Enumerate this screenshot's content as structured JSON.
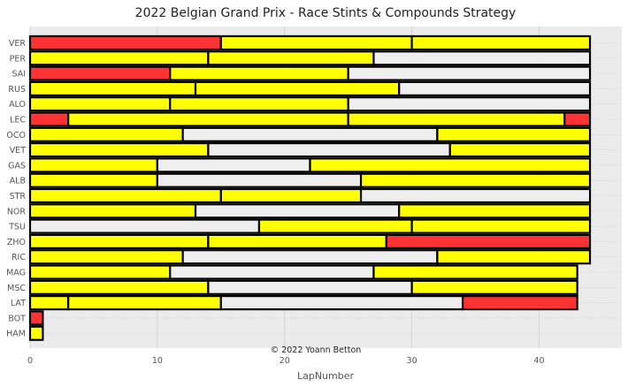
{
  "chart_data": {
    "type": "bar",
    "orientation": "horizontal-stacked",
    "title": "2022 Belgian Grand Prix - Race Stints & Compounds Strategy",
    "xlabel": "LapNumber",
    "ylabel": "",
    "xlim": [
      0,
      46.5
    ],
    "xticks": [
      0,
      10,
      20,
      30,
      40
    ],
    "grid": true,
    "annotation": "© 2022 Yoann Betton",
    "compound_colors": {
      "SOFT": "#ff3333",
      "MEDIUM": "#ffff00",
      "HARD": "#eeeeee"
    },
    "drivers": [
      {
        "driver": "VER",
        "stints": [
          {
            "compound": "SOFT",
            "laps": 15
          },
          {
            "compound": "MEDIUM",
            "laps": 15
          },
          {
            "compound": "MEDIUM",
            "laps": 14
          }
        ]
      },
      {
        "driver": "PER",
        "stints": [
          {
            "compound": "MEDIUM",
            "laps": 14
          },
          {
            "compound": "MEDIUM",
            "laps": 13
          },
          {
            "compound": "HARD",
            "laps": 17
          }
        ]
      },
      {
        "driver": "SAI",
        "stints": [
          {
            "compound": "SOFT",
            "laps": 11
          },
          {
            "compound": "MEDIUM",
            "laps": 14
          },
          {
            "compound": "HARD",
            "laps": 19
          }
        ]
      },
      {
        "driver": "RUS",
        "stints": [
          {
            "compound": "MEDIUM",
            "laps": 13
          },
          {
            "compound": "MEDIUM",
            "laps": 16
          },
          {
            "compound": "HARD",
            "laps": 15
          }
        ]
      },
      {
        "driver": "ALO",
        "stints": [
          {
            "compound": "MEDIUM",
            "laps": 11
          },
          {
            "compound": "MEDIUM",
            "laps": 14
          },
          {
            "compound": "HARD",
            "laps": 19
          }
        ]
      },
      {
        "driver": "LEC",
        "stints": [
          {
            "compound": "SOFT",
            "laps": 3
          },
          {
            "compound": "MEDIUM",
            "laps": 22
          },
          {
            "compound": "MEDIUM",
            "laps": 17
          },
          {
            "compound": "SOFT",
            "laps": 2
          }
        ]
      },
      {
        "driver": "OCO",
        "stints": [
          {
            "compound": "MEDIUM",
            "laps": 12
          },
          {
            "compound": "HARD",
            "laps": 20
          },
          {
            "compound": "MEDIUM",
            "laps": 12
          }
        ]
      },
      {
        "driver": "VET",
        "stints": [
          {
            "compound": "MEDIUM",
            "laps": 14
          },
          {
            "compound": "HARD",
            "laps": 19
          },
          {
            "compound": "MEDIUM",
            "laps": 11
          }
        ]
      },
      {
        "driver": "GAS",
        "stints": [
          {
            "compound": "MEDIUM",
            "laps": 10
          },
          {
            "compound": "HARD",
            "laps": 12
          },
          {
            "compound": "MEDIUM",
            "laps": 22
          }
        ]
      },
      {
        "driver": "ALB",
        "stints": [
          {
            "compound": "MEDIUM",
            "laps": 10
          },
          {
            "compound": "HARD",
            "laps": 16
          },
          {
            "compound": "MEDIUM",
            "laps": 18
          }
        ]
      },
      {
        "driver": "STR",
        "stints": [
          {
            "compound": "MEDIUM",
            "laps": 15
          },
          {
            "compound": "MEDIUM",
            "laps": 11
          },
          {
            "compound": "HARD",
            "laps": 18
          }
        ]
      },
      {
        "driver": "NOR",
        "stints": [
          {
            "compound": "MEDIUM",
            "laps": 13
          },
          {
            "compound": "HARD",
            "laps": 16
          },
          {
            "compound": "MEDIUM",
            "laps": 15
          }
        ]
      },
      {
        "driver": "TSU",
        "stints": [
          {
            "compound": "HARD",
            "laps": 18
          },
          {
            "compound": "MEDIUM",
            "laps": 12
          },
          {
            "compound": "MEDIUM",
            "laps": 14
          }
        ]
      },
      {
        "driver": "ZHO",
        "stints": [
          {
            "compound": "MEDIUM",
            "laps": 14
          },
          {
            "compound": "MEDIUM",
            "laps": 14
          },
          {
            "compound": "SOFT",
            "laps": 16
          }
        ]
      },
      {
        "driver": "RIC",
        "stints": [
          {
            "compound": "MEDIUM",
            "laps": 12
          },
          {
            "compound": "HARD",
            "laps": 20
          },
          {
            "compound": "MEDIUM",
            "laps": 12
          }
        ]
      },
      {
        "driver": "MAG",
        "stints": [
          {
            "compound": "MEDIUM",
            "laps": 11
          },
          {
            "compound": "HARD",
            "laps": 16
          },
          {
            "compound": "MEDIUM",
            "laps": 16
          }
        ]
      },
      {
        "driver": "MSC",
        "stints": [
          {
            "compound": "MEDIUM",
            "laps": 14
          },
          {
            "compound": "HARD",
            "laps": 16
          },
          {
            "compound": "MEDIUM",
            "laps": 13
          }
        ]
      },
      {
        "driver": "LAT",
        "stints": [
          {
            "compound": "MEDIUM",
            "laps": 3
          },
          {
            "compound": "MEDIUM",
            "laps": 12
          },
          {
            "compound": "HARD",
            "laps": 19
          },
          {
            "compound": "SOFT",
            "laps": 9
          }
        ]
      },
      {
        "driver": "BOT",
        "stints": [
          {
            "compound": "SOFT",
            "laps": 1
          }
        ]
      },
      {
        "driver": "HAM",
        "stints": [
          {
            "compound": "MEDIUM",
            "laps": 1
          }
        ]
      }
    ]
  }
}
